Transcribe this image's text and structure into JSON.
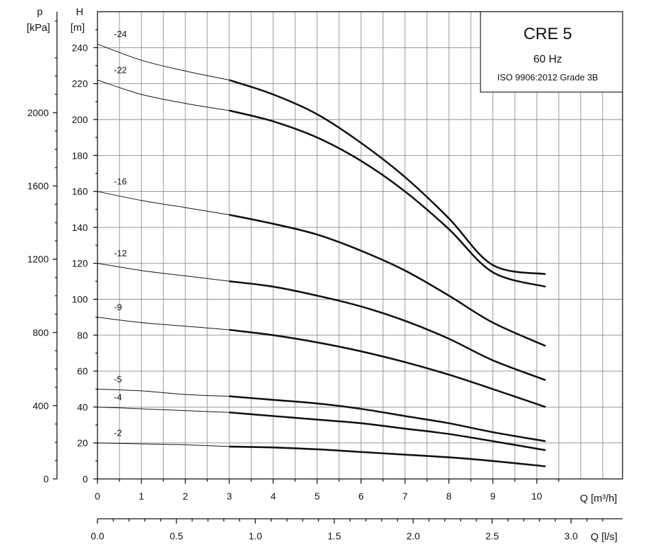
{
  "chart_data": {
    "type": "line",
    "title": "CRE 5",
    "subtitle": "60 Hz",
    "note": "ISO 9906:2012 Grade 3B",
    "y_left_outer": {
      "label_line1": "p",
      "label_line2": "[kPa]",
      "ticks": [
        "0",
        "400",
        "800",
        "1200",
        "1600",
        "2000"
      ],
      "range": [
        0,
        2550
      ]
    },
    "y_left_inner": {
      "label_line1": "H",
      "label_line2": "[m]",
      "ticks": [
        "0",
        "20",
        "40",
        "60",
        "80",
        "100",
        "120",
        "140",
        "160",
        "180",
        "200",
        "220",
        "240"
      ],
      "range": [
        0,
        260
      ]
    },
    "x_bottom": {
      "label": "Q [m³/h]",
      "ticks": [
        "0",
        "1",
        "2",
        "3",
        "4",
        "5",
        "6",
        "7",
        "8",
        "9",
        "10"
      ],
      "range": [
        0,
        11
      ]
    },
    "x_second": {
      "label": "Q [l/s]",
      "ticks": [
        "0.0",
        "0.5",
        "1.0",
        "1.5",
        "2.0",
        "2.5",
        "3.0"
      ]
    },
    "grid": true,
    "series": [
      {
        "name": "-24",
        "thin_until": 3,
        "points": [
          [
            0,
            242
          ],
          [
            1,
            233
          ],
          [
            2,
            227
          ],
          [
            3,
            222
          ],
          [
            4,
            214
          ],
          [
            5,
            203
          ],
          [
            6,
            187
          ],
          [
            7,
            168
          ],
          [
            8,
            145
          ],
          [
            9,
            119
          ],
          [
            10.2,
            114
          ]
        ]
      },
      {
        "name": "-22",
        "thin_until": 3,
        "points": [
          [
            0,
            222
          ],
          [
            1,
            214
          ],
          [
            2,
            209
          ],
          [
            3,
            205
          ],
          [
            4,
            199
          ],
          [
            5,
            190
          ],
          [
            6,
            177
          ],
          [
            7,
            160
          ],
          [
            8,
            139
          ],
          [
            9,
            115
          ],
          [
            10.2,
            107
          ]
        ]
      },
      {
        "name": "-16",
        "thin_until": 3,
        "points": [
          [
            0,
            160
          ],
          [
            1,
            155
          ],
          [
            2,
            151
          ],
          [
            3,
            147
          ],
          [
            4,
            142
          ],
          [
            5,
            136
          ],
          [
            6,
            127
          ],
          [
            7,
            116
          ],
          [
            8,
            102
          ],
          [
            9,
            87
          ],
          [
            10.2,
            74
          ]
        ]
      },
      {
        "name": "-12",
        "thin_until": 3,
        "points": [
          [
            0,
            120
          ],
          [
            1,
            116
          ],
          [
            2,
            113
          ],
          [
            3,
            110
          ],
          [
            4,
            107
          ],
          [
            5,
            102
          ],
          [
            6,
            96
          ],
          [
            7,
            88
          ],
          [
            8,
            78
          ],
          [
            9,
            66
          ],
          [
            10.2,
            55
          ]
        ]
      },
      {
        "name": "-9",
        "thin_until": 3,
        "points": [
          [
            0,
            90
          ],
          [
            1,
            87
          ],
          [
            2,
            85
          ],
          [
            3,
            83
          ],
          [
            4,
            80
          ],
          [
            5,
            76
          ],
          [
            6,
            71
          ],
          [
            7,
            65
          ],
          [
            8,
            58
          ],
          [
            9,
            50
          ],
          [
            10.2,
            40
          ]
        ]
      },
      {
        "name": "-5",
        "thin_until": 3,
        "points": [
          [
            0,
            50
          ],
          [
            1,
            49
          ],
          [
            2,
            47
          ],
          [
            3,
            46
          ],
          [
            4,
            44
          ],
          [
            5,
            42
          ],
          [
            6,
            39
          ],
          [
            7,
            35
          ],
          [
            8,
            31
          ],
          [
            9,
            26
          ],
          [
            10.2,
            21
          ]
        ]
      },
      {
        "name": "-4",
        "thin_until": 3,
        "points": [
          [
            0,
            40
          ],
          [
            1,
            39
          ],
          [
            2,
            38
          ],
          [
            3,
            37
          ],
          [
            4,
            35
          ],
          [
            5,
            33
          ],
          [
            6,
            31
          ],
          [
            7,
            28
          ],
          [
            8,
            25
          ],
          [
            9,
            21
          ],
          [
            10.2,
            16
          ]
        ]
      },
      {
        "name": "-2",
        "thin_until": 3,
        "points": [
          [
            0,
            20
          ],
          [
            1,
            19.5
          ],
          [
            2,
            19
          ],
          [
            3,
            18
          ],
          [
            4,
            17.5
          ],
          [
            5,
            16.5
          ],
          [
            6,
            15
          ],
          [
            7,
            13.5
          ],
          [
            8,
            12
          ],
          [
            9,
            10
          ],
          [
            10.2,
            7
          ]
        ]
      }
    ]
  }
}
